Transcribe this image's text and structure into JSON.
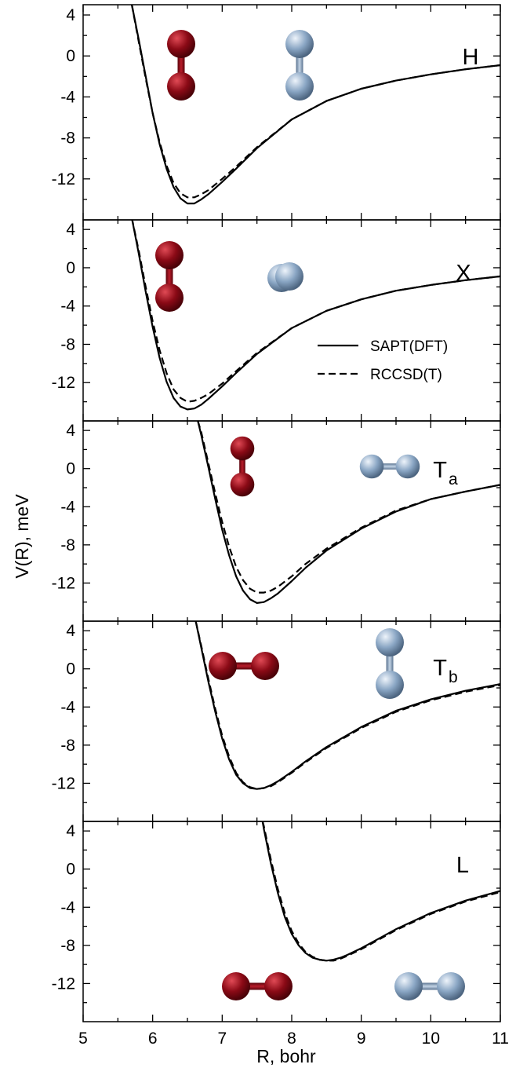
{
  "chart_data": {
    "type": "line",
    "xlabel": "R, bohr",
    "ylabel": "V(R), meV",
    "xlim": [
      5,
      11
    ],
    "ylim": [
      -16,
      5
    ],
    "x_ticks": [
      5,
      6,
      7,
      8,
      9,
      10,
      11
    ],
    "x_tick_labels": [
      "5",
      "6",
      "7",
      "8",
      "9",
      "10",
      "11"
    ],
    "y_ticks": [
      4,
      0,
      -4,
      -8,
      -12
    ],
    "y_tick_labels": [
      "4",
      "0",
      "-4",
      "-8",
      "-12"
    ],
    "grid": false,
    "legend": {
      "placement": "right, in panel X",
      "entries": [
        {
          "label": "SAPT(DFT)",
          "style": "solid"
        },
        {
          "label": "RCCSD(T)",
          "style": "dashed"
        }
      ]
    },
    "panels": [
      {
        "name": "H",
        "sub": "",
        "series": [
          {
            "name": "SAPT(DFT)",
            "style": "solid",
            "x": [
              5.7,
              5.8,
              5.9,
              6.0,
              6.1,
              6.2,
              6.3,
              6.4,
              6.5,
              6.6,
              6.7,
              6.8,
              7.0,
              7.2,
              7.5,
              8.0,
              8.5,
              9.0,
              9.5,
              10.0,
              10.5,
              11.0
            ],
            "y": [
              5.0,
              1.6,
              -2.0,
              -5.6,
              -8.6,
              -11.0,
              -12.8,
              -13.9,
              -14.4,
              -14.4,
              -14.0,
              -13.5,
              -12.3,
              -11.0,
              -9.0,
              -6.2,
              -4.4,
              -3.2,
              -2.4,
              -1.8,
              -1.3,
              -0.9
            ]
          },
          {
            "name": "RCCSD(T)",
            "style": "dashed",
            "x": [
              5.7,
              5.8,
              5.9,
              6.0,
              6.1,
              6.2,
              6.3,
              6.4,
              6.5,
              6.6,
              6.7,
              6.8,
              7.0,
              7.2,
              7.5,
              8.0,
              8.5,
              9.0,
              9.5,
              10.0,
              10.5,
              11.0
            ],
            "y": [
              5.0,
              1.4,
              -2.2,
              -5.6,
              -8.4,
              -10.7,
              -12.4,
              -13.4,
              -13.8,
              -13.8,
              -13.5,
              -13.1,
              -12.0,
              -10.8,
              -8.9,
              -6.2,
              -4.4,
              -3.2,
              -2.4,
              -1.8,
              -1.3,
              -0.9
            ]
          }
        ],
        "icons": [
          {
            "type": "dimer",
            "color": "red",
            "orientation": "vertical",
            "view": "full"
          },
          {
            "type": "dimer",
            "color": "blue",
            "orientation": "vertical",
            "view": "full"
          }
        ]
      },
      {
        "name": "X",
        "sub": "",
        "series": [
          {
            "name": "SAPT(DFT)",
            "style": "solid",
            "x": [
              5.7,
              5.8,
              5.9,
              6.0,
              6.1,
              6.2,
              6.3,
              6.4,
              6.5,
              6.6,
              6.7,
              6.8,
              7.0,
              7.2,
              7.5,
              8.0,
              8.5,
              9.0,
              9.5,
              10.0,
              10.5,
              11.0
            ],
            "y": [
              5.2,
              1.5,
              -2.5,
              -6.2,
              -9.4,
              -11.9,
              -13.6,
              -14.5,
              -14.8,
              -14.7,
              -14.3,
              -13.7,
              -12.4,
              -11.0,
              -9.0,
              -6.3,
              -4.5,
              -3.3,
              -2.4,
              -1.8,
              -1.3,
              -0.9
            ]
          },
          {
            "name": "RCCSD(T)",
            "style": "dashed",
            "x": [
              5.7,
              5.8,
              5.9,
              6.0,
              6.1,
              6.2,
              6.3,
              6.4,
              6.5,
              6.6,
              6.7,
              6.8,
              7.0,
              7.2,
              7.5,
              8.0,
              8.5,
              9.0,
              9.5,
              10.0,
              10.5,
              11.0
            ],
            "y": [
              5.2,
              1.8,
              -2.0,
              -5.6,
              -8.6,
              -11.0,
              -12.7,
              -13.6,
              -14.0,
              -13.9,
              -13.6,
              -13.2,
              -12.1,
              -10.8,
              -8.9,
              -6.3,
              -4.5,
              -3.3,
              -2.4,
              -1.8,
              -1.3,
              -0.9
            ]
          }
        ],
        "icons": [
          {
            "type": "dimer",
            "color": "red",
            "orientation": "vertical",
            "view": "full"
          },
          {
            "type": "dimer",
            "color": "blue",
            "orientation": "end-on",
            "view": "overlap"
          }
        ]
      },
      {
        "name": "T",
        "sub": "a",
        "series": [
          {
            "name": "SAPT(DFT)",
            "style": "solid",
            "x": [
              6.65,
              6.7,
              6.8,
              6.9,
              7.0,
              7.1,
              7.2,
              7.3,
              7.4,
              7.5,
              7.6,
              7.7,
              7.8,
              8.0,
              8.2,
              8.5,
              9.0,
              9.5,
              10.0,
              10.5,
              11.0
            ],
            "y": [
              5.0,
              3.5,
              0.2,
              -3.2,
              -6.4,
              -9.1,
              -11.3,
              -12.8,
              -13.7,
              -14.1,
              -14.0,
              -13.6,
              -13.1,
              -11.8,
              -10.4,
              -8.6,
              -6.3,
              -4.5,
              -3.2,
              -2.4,
              -1.7
            ]
          },
          {
            "name": "RCCSD(T)",
            "style": "dashed",
            "x": [
              6.65,
              6.7,
              6.8,
              6.9,
              7.0,
              7.1,
              7.2,
              7.3,
              7.4,
              7.5,
              7.6,
              7.7,
              7.8,
              8.0,
              8.2,
              8.5,
              9.0,
              9.5,
              10.0,
              10.5,
              11.0
            ],
            "y": [
              5.0,
              3.8,
              0.6,
              -2.6,
              -5.6,
              -8.2,
              -10.3,
              -11.7,
              -12.6,
              -13.0,
              -13.0,
              -12.8,
              -12.4,
              -11.3,
              -10.0,
              -8.4,
              -6.2,
              -4.4,
              -3.2,
              -2.4,
              -1.7
            ]
          }
        ],
        "icons": [
          {
            "type": "dimer",
            "color": "red",
            "orientation": "vertical",
            "view": "full"
          },
          {
            "type": "dimer",
            "color": "blue",
            "orientation": "horizontal",
            "view": "full"
          }
        ]
      },
      {
        "name": "T",
        "sub": "b",
        "series": [
          {
            "name": "SAPT(DFT)",
            "style": "solid",
            "x": [
              6.62,
              6.7,
              6.8,
              6.9,
              7.0,
              7.1,
              7.2,
              7.3,
              7.4,
              7.5,
              7.6,
              7.7,
              7.8,
              8.0,
              8.2,
              8.5,
              9.0,
              9.5,
              10.0,
              10.5,
              11.0
            ],
            "y": [
              5.0,
              2.2,
              -1.3,
              -4.5,
              -7.3,
              -9.5,
              -11.1,
              -12.0,
              -12.5,
              -12.6,
              -12.5,
              -12.2,
              -11.8,
              -10.8,
              -9.7,
              -8.2,
              -6.1,
              -4.4,
              -3.2,
              -2.3,
              -1.6
            ]
          },
          {
            "name": "RCCSD(T)",
            "style": "dashed",
            "x": [
              6.62,
              6.7,
              6.8,
              6.9,
              7.0,
              7.1,
              7.2,
              7.3,
              7.4,
              7.5,
              7.6,
              7.7,
              7.8,
              8.0,
              8.2,
              8.5,
              9.0,
              9.5,
              10.0,
              10.5,
              11.0
            ],
            "y": [
              5.0,
              2.4,
              -1.0,
              -4.2,
              -7.0,
              -9.2,
              -10.9,
              -11.9,
              -12.4,
              -12.6,
              -12.5,
              -12.3,
              -11.9,
              -10.9,
              -9.8,
              -8.3,
              -6.2,
              -4.5,
              -3.3,
              -2.4,
              -1.7
            ]
          }
        ],
        "icons": [
          {
            "type": "dimer",
            "color": "red",
            "orientation": "horizontal",
            "view": "full"
          },
          {
            "type": "dimer",
            "color": "blue",
            "orientation": "vertical",
            "view": "full"
          }
        ]
      },
      {
        "name": "L",
        "sub": "",
        "series": [
          {
            "name": "SAPT(DFT)",
            "style": "solid",
            "x": [
              7.58,
              7.6,
              7.7,
              7.8,
              7.9,
              8.0,
              8.1,
              8.2,
              8.3,
              8.4,
              8.5,
              8.6,
              8.7,
              8.8,
              9.0,
              9.2,
              9.5,
              10.0,
              10.5,
              11.0
            ],
            "y": [
              5.0,
              4.2,
              0.6,
              -2.5,
              -5.0,
              -6.8,
              -8.0,
              -8.8,
              -9.3,
              -9.5,
              -9.6,
              -9.5,
              -9.3,
              -9.0,
              -8.3,
              -7.5,
              -6.3,
              -4.6,
              -3.3,
              -2.3
            ]
          },
          {
            "name": "RCCSD(T)",
            "style": "dashed",
            "x": [
              7.58,
              7.6,
              7.7,
              7.8,
              7.9,
              8.0,
              8.1,
              8.2,
              8.3,
              8.4,
              8.5,
              8.6,
              8.7,
              8.8,
              9.0,
              9.2,
              9.5,
              10.0,
              10.5,
              11.0
            ],
            "y": [
              5.0,
              4.5,
              1.0,
              -2.1,
              -4.6,
              -6.5,
              -7.8,
              -8.7,
              -9.2,
              -9.5,
              -9.6,
              -9.6,
              -9.4,
              -9.1,
              -8.4,
              -7.6,
              -6.4,
              -4.7,
              -3.4,
              -2.4
            ]
          }
        ],
        "icons": [
          {
            "type": "dimer",
            "color": "red",
            "orientation": "horizontal",
            "view": "full"
          },
          {
            "type": "dimer",
            "color": "blue",
            "orientation": "horizontal",
            "view": "full"
          }
        ]
      }
    ]
  },
  "colors": {
    "red_molecule": "#8b0a16",
    "red_molecule_highlight": "#e04a55",
    "blue_molecule": "#8aa6c4",
    "blue_molecule_highlight": "#eef4fb",
    "axis": "#000000",
    "line": "#000000"
  }
}
